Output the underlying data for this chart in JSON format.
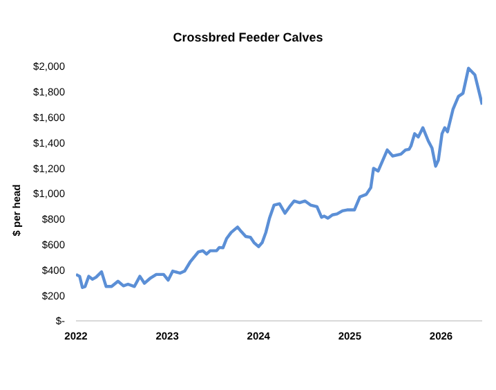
{
  "chart_data": {
    "type": "line",
    "title": "Crossbred Feeder Calves",
    "ylabel": "$ per head",
    "x": [
      2022.0,
      2022.04,
      2022.07,
      2022.1,
      2022.14,
      2022.18,
      2022.22,
      2022.28,
      2022.33,
      2022.39,
      2022.46,
      2022.52,
      2022.57,
      2022.64,
      2022.7,
      2022.75,
      2022.81,
      2022.88,
      2022.96,
      2023.01,
      2023.06,
      2023.14,
      2023.19,
      2023.25,
      2023.34,
      2023.39,
      2023.43,
      2023.47,
      2023.54,
      2023.57,
      2023.61,
      2023.65,
      2023.7,
      2023.77,
      2023.81,
      2023.86,
      2023.91,
      2023.95,
      2024.0,
      2024.04,
      2024.08,
      2024.12,
      2024.17,
      2024.23,
      2024.29,
      2024.34,
      2024.39,
      2024.45,
      2024.51,
      2024.57,
      2024.64,
      2024.69,
      2024.72,
      2024.76,
      2024.81,
      2024.86,
      2024.92,
      2024.97,
      2025.05,
      2025.11,
      2025.18,
      2025.23,
      2025.26,
      2025.31,
      2025.41,
      2025.47,
      2025.56,
      2025.61,
      2025.65,
      2025.67,
      2025.71,
      2025.75,
      2025.8,
      2025.86,
      2025.9,
      2025.94,
      2025.97,
      2026.01,
      2026.04,
      2026.07,
      2026.13,
      2026.19,
      2026.24,
      2026.3,
      2026.37,
      2026.45
    ],
    "series": [
      {
        "color": "#5b8fd6",
        "values": [
          365,
          350,
          262,
          270,
          350,
          327,
          343,
          385,
          270,
          270,
          311,
          275,
          288,
          270,
          350,
          295,
          333,
          365,
          365,
          320,
          391,
          375,
          391,
          462,
          542,
          551,
          525,
          551,
          551,
          577,
          574,
          647,
          695,
          737,
          702,
          663,
          657,
          615,
          583,
          615,
          695,
          807,
          910,
          920,
          846,
          897,
          942,
          929,
          942,
          910,
          897,
          814,
          823,
          807,
          833,
          840,
          865,
          872,
          872,
          974,
          994,
          1048,
          1199,
          1177,
          1343,
          1295,
          1311,
          1343,
          1349,
          1375,
          1471,
          1445,
          1518,
          1413,
          1359,
          1215,
          1263,
          1471,
          1518,
          1486,
          1662,
          1764,
          1789,
          1985,
          1933,
          1700
        ]
      }
    ],
    "xlim": [
      2022,
      2026.45
    ],
    "xticks": [
      2022,
      2023,
      2024,
      2025,
      2026
    ],
    "ylim": [
      0,
      2000
    ],
    "yticks": [
      {
        "value": 0,
        "label": "$-"
      },
      {
        "value": 200,
        "label": "$200"
      },
      {
        "value": 400,
        "label": "$400"
      },
      {
        "value": 600,
        "label": "$600"
      },
      {
        "value": 800,
        "label": "$800"
      },
      {
        "value": 1000,
        "label": "$1,000"
      },
      {
        "value": 1200,
        "label": "$1,200"
      },
      {
        "value": 1400,
        "label": "$1,400"
      },
      {
        "value": 1600,
        "label": "$1,600"
      },
      {
        "value": 1800,
        "label": "$1,800"
      },
      {
        "value": 2000,
        "label": "$2,000"
      }
    ],
    "grid": false,
    "legend": false,
    "marker": "none",
    "line_style": "solid"
  }
}
